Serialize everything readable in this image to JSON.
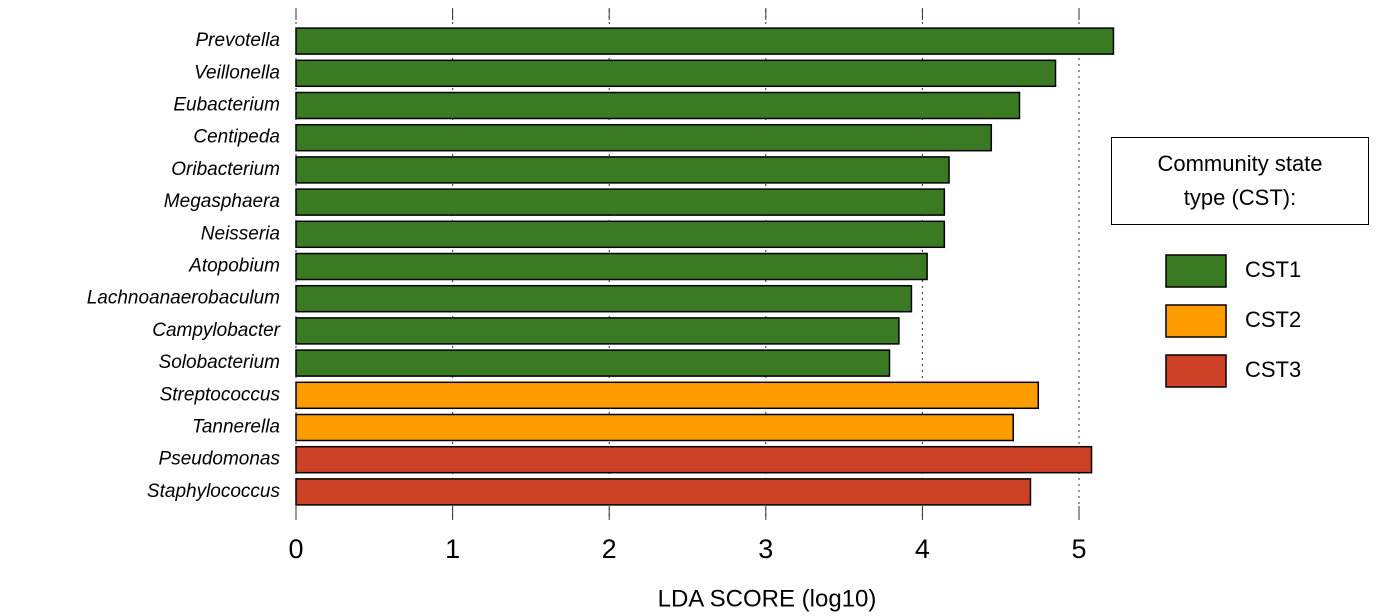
{
  "chart_data": {
    "type": "barh",
    "x_label": "LDA SCORE (log10)",
    "legend_title": "Community state type (CST):",
    "categories": [
      "Prevotella",
      "Veillonella",
      "Eubacterium",
      "Centipeda",
      "Oribacterium",
      "Megasphaera",
      "Neisseria",
      "Atopobium",
      "Lachnoanaerobaculum",
      "Campylobacter",
      "Solobacterium",
      "Streptococcus",
      "Tannerella",
      "Pseudomonas",
      "Staphylococcus"
    ],
    "series": [
      {
        "name": "CST1",
        "color": "#3a7a23",
        "values": [
          5.22,
          4.85,
          4.62,
          4.44,
          4.17,
          4.14,
          4.14,
          4.03,
          3.93,
          3.85,
          3.79,
          null,
          null,
          null,
          null
        ]
      },
      {
        "name": "CST2",
        "color": "#ff9d00",
        "values": [
          null,
          null,
          null,
          null,
          null,
          null,
          null,
          null,
          null,
          null,
          null,
          4.74,
          4.58,
          null,
          null
        ]
      },
      {
        "name": "CST3",
        "color": "#cc4125",
        "values": [
          null,
          null,
          null,
          null,
          null,
          null,
          null,
          null,
          null,
          null,
          null,
          null,
          null,
          5.08,
          4.69
        ]
      }
    ],
    "xlim": [
      0,
      5.3
    ],
    "xticks": [
      0,
      1,
      2,
      3,
      4,
      5
    ],
    "grid": true
  }
}
